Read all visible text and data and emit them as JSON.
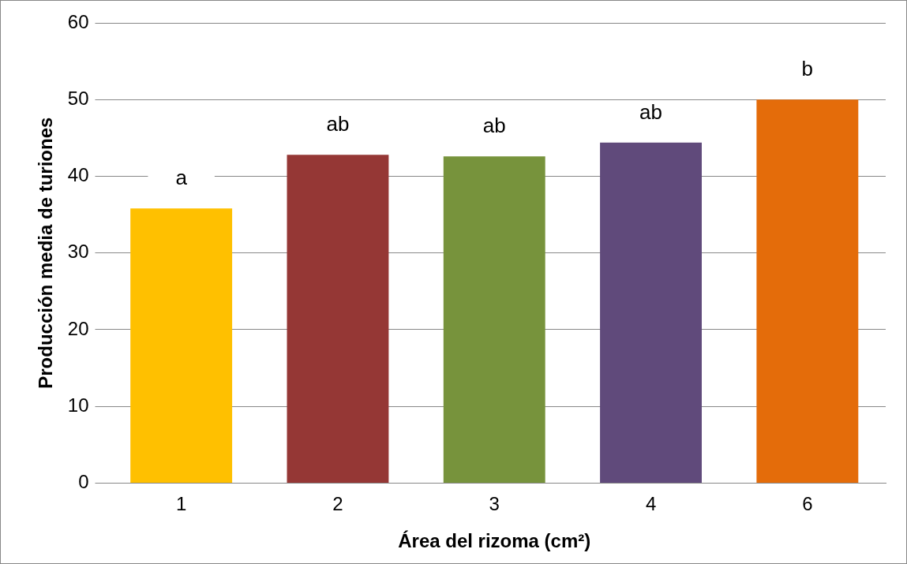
{
  "chart_data": {
    "type": "bar",
    "xlabel": "Área del rizoma (cm²)",
    "ylabel": "Producción media de turiones",
    "categories": [
      "1",
      "2",
      "3",
      "4",
      "6"
    ],
    "values": [
      35.8,
      42.8,
      42.6,
      44.4,
      50
    ],
    "colors": [
      "#ffc000",
      "#953735",
      "#77933c",
      "#604a7b",
      "#e46c0a"
    ],
    "ylim": [
      0,
      60
    ],
    "yticks": [
      0,
      10,
      20,
      30,
      40,
      50,
      60
    ],
    "grid": "y",
    "legend": false,
    "annotations": [
      {
        "text": "a",
        "x": "1",
        "y": 35.8
      },
      {
        "text": "ab",
        "x": "2",
        "y": 42.8
      },
      {
        "text": "ab",
        "x": "3",
        "y": 42.6
      },
      {
        "text": "ab",
        "x": "4",
        "y": 44.4
      },
      {
        "text": "b",
        "x": "6",
        "y": 50
      }
    ]
  }
}
